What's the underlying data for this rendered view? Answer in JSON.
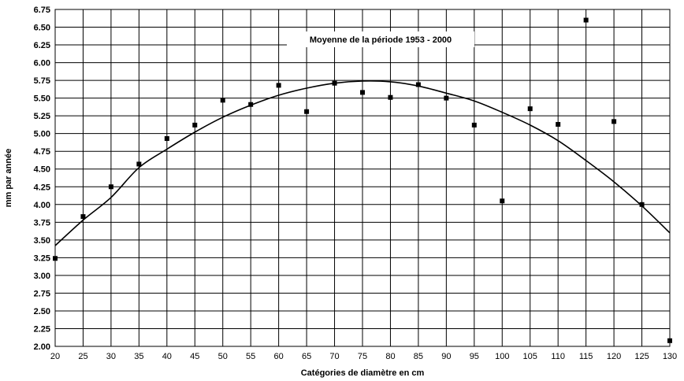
{
  "chart_data": {
    "type": "scatter",
    "title": "",
    "annotation": "Moyenne de la période 1953 - 2000",
    "xlabel": "Catégories de diamètre en cm",
    "ylabel": "mm par année",
    "xlim": [
      20,
      130
    ],
    "ylim": [
      2.0,
      6.75
    ],
    "x_ticks": [
      20,
      25,
      30,
      35,
      40,
      45,
      50,
      55,
      60,
      65,
      70,
      75,
      80,
      85,
      90,
      95,
      100,
      105,
      110,
      115,
      120,
      125,
      130
    ],
    "y_ticks": [
      "2.00",
      "2.25",
      "2.50",
      "2.75",
      "3.00",
      "3.25",
      "3.50",
      "3.75",
      "4.00",
      "4.25",
      "4.50",
      "4.75",
      "5.00",
      "5.25",
      "5.50",
      "5.75",
      "6.00",
      "6.25",
      "6.50",
      "6.75"
    ],
    "grid": true,
    "series": [
      {
        "marker": "square",
        "color": "#000000",
        "x": [
          20,
          25,
          30,
          35,
          40,
          45,
          50,
          55,
          60,
          65,
          70,
          75,
          80,
          85,
          90,
          95,
          100,
          105,
          110,
          115,
          120,
          125,
          130
        ],
        "y": [
          3.24,
          3.83,
          4.25,
          4.57,
          4.93,
          5.12,
          5.47,
          5.41,
          5.68,
          5.31,
          5.71,
          5.58,
          5.51,
          5.69,
          5.5,
          5.12,
          4.05,
          5.35,
          5.13,
          6.6,
          5.17,
          4.0,
          2.08
        ]
      },
      {
        "type": "line",
        "kind": "trend",
        "color": "#000000",
        "x": [
          20,
          25,
          30,
          35,
          40,
          45,
          50,
          55,
          60,
          65,
          70,
          75,
          80,
          85,
          90,
          95,
          100,
          105,
          110,
          115,
          120,
          125,
          130
        ],
        "y": [
          3.42,
          3.78,
          4.1,
          4.52,
          4.78,
          5.02,
          5.23,
          5.4,
          5.54,
          5.64,
          5.71,
          5.74,
          5.73,
          5.67,
          5.57,
          5.46,
          5.3,
          5.12,
          4.9,
          4.62,
          4.32,
          3.98,
          3.6
        ]
      }
    ]
  }
}
